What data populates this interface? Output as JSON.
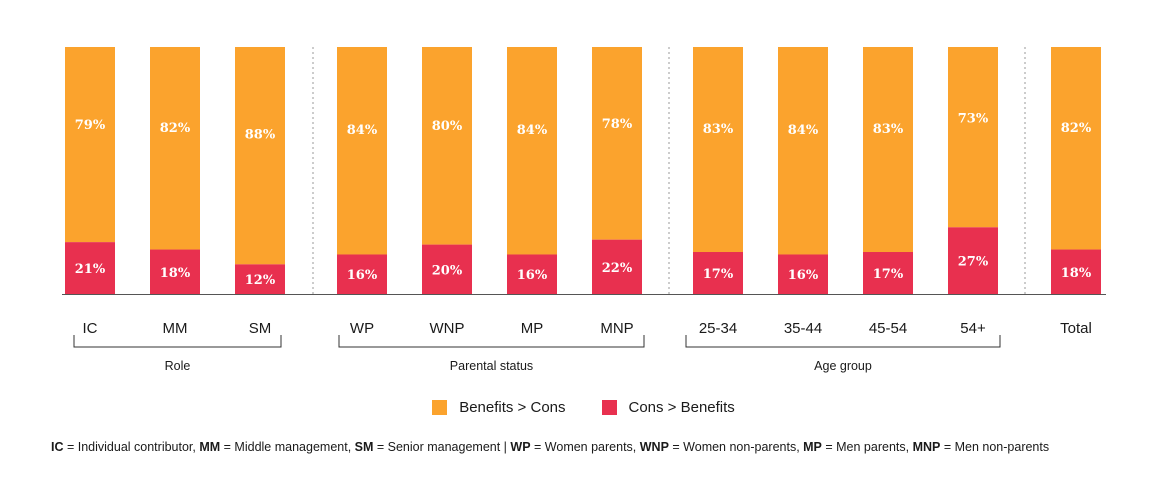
{
  "chart_data": {
    "type": "bar",
    "stacked": true,
    "ylim": [
      0,
      100
    ],
    "categories": [
      "IC",
      "MM",
      "SM",
      "WP",
      "WNP",
      "MP",
      "MNP",
      "25-34",
      "35-44",
      "45-54",
      "54+",
      "Total"
    ],
    "groups": [
      {
        "label": "Role",
        "categories": [
          "IC",
          "MM",
          "SM"
        ]
      },
      {
        "label": "Parental status",
        "categories": [
          "WP",
          "WNP",
          "MP",
          "MNP"
        ]
      },
      {
        "label": "Age group",
        "categories": [
          "25-34",
          "35-44",
          "45-54",
          "54+"
        ]
      },
      {
        "label": "",
        "categories": [
          "Total"
        ]
      }
    ],
    "series": [
      {
        "name": "Cons > Benefits",
        "color": "#E8304F",
        "values": [
          21,
          18,
          12,
          16,
          20,
          16,
          22,
          17,
          16,
          17,
          27,
          18
        ],
        "labels": [
          "21%",
          "18%",
          "12%",
          "16%",
          "20%",
          "16%",
          "22%",
          "17%",
          "16%",
          "17%",
          "27%",
          "18%"
        ]
      },
      {
        "name": "Benefits > Cons",
        "color": "#FBA32D",
        "values": [
          79,
          82,
          88,
          84,
          80,
          84,
          78,
          83,
          84,
          83,
          73,
          82
        ],
        "labels": [
          "79%",
          "82%",
          "88%",
          "84%",
          "80%",
          "84%",
          "78%",
          "83%",
          "84%",
          "83%",
          "73%",
          "82%"
        ]
      }
    ],
    "legend": [
      "Benefits > Cons",
      "Cons > Benefits"
    ],
    "legend_position": "bottom-center",
    "grid": false
  },
  "colors": {
    "benefits": "#FBA32D",
    "cons": "#E8304F",
    "axis": "#555555",
    "separator": "#999999"
  },
  "footnote": [
    {
      "abbr": "IC",
      "text": " = Individual contributor,  "
    },
    {
      "abbr": "MM",
      "text": " = Middle management, "
    },
    {
      "abbr": "SM",
      "text": " = Senior management | "
    },
    {
      "abbr": "WP",
      "text": " = Women parents, "
    },
    {
      "abbr": "WNP",
      "text": " = Women non-parents, "
    },
    {
      "abbr": "MP",
      "text": " = Men parents, "
    },
    {
      "abbr": "MNP",
      "text": " = Men non-parents"
    }
  ]
}
